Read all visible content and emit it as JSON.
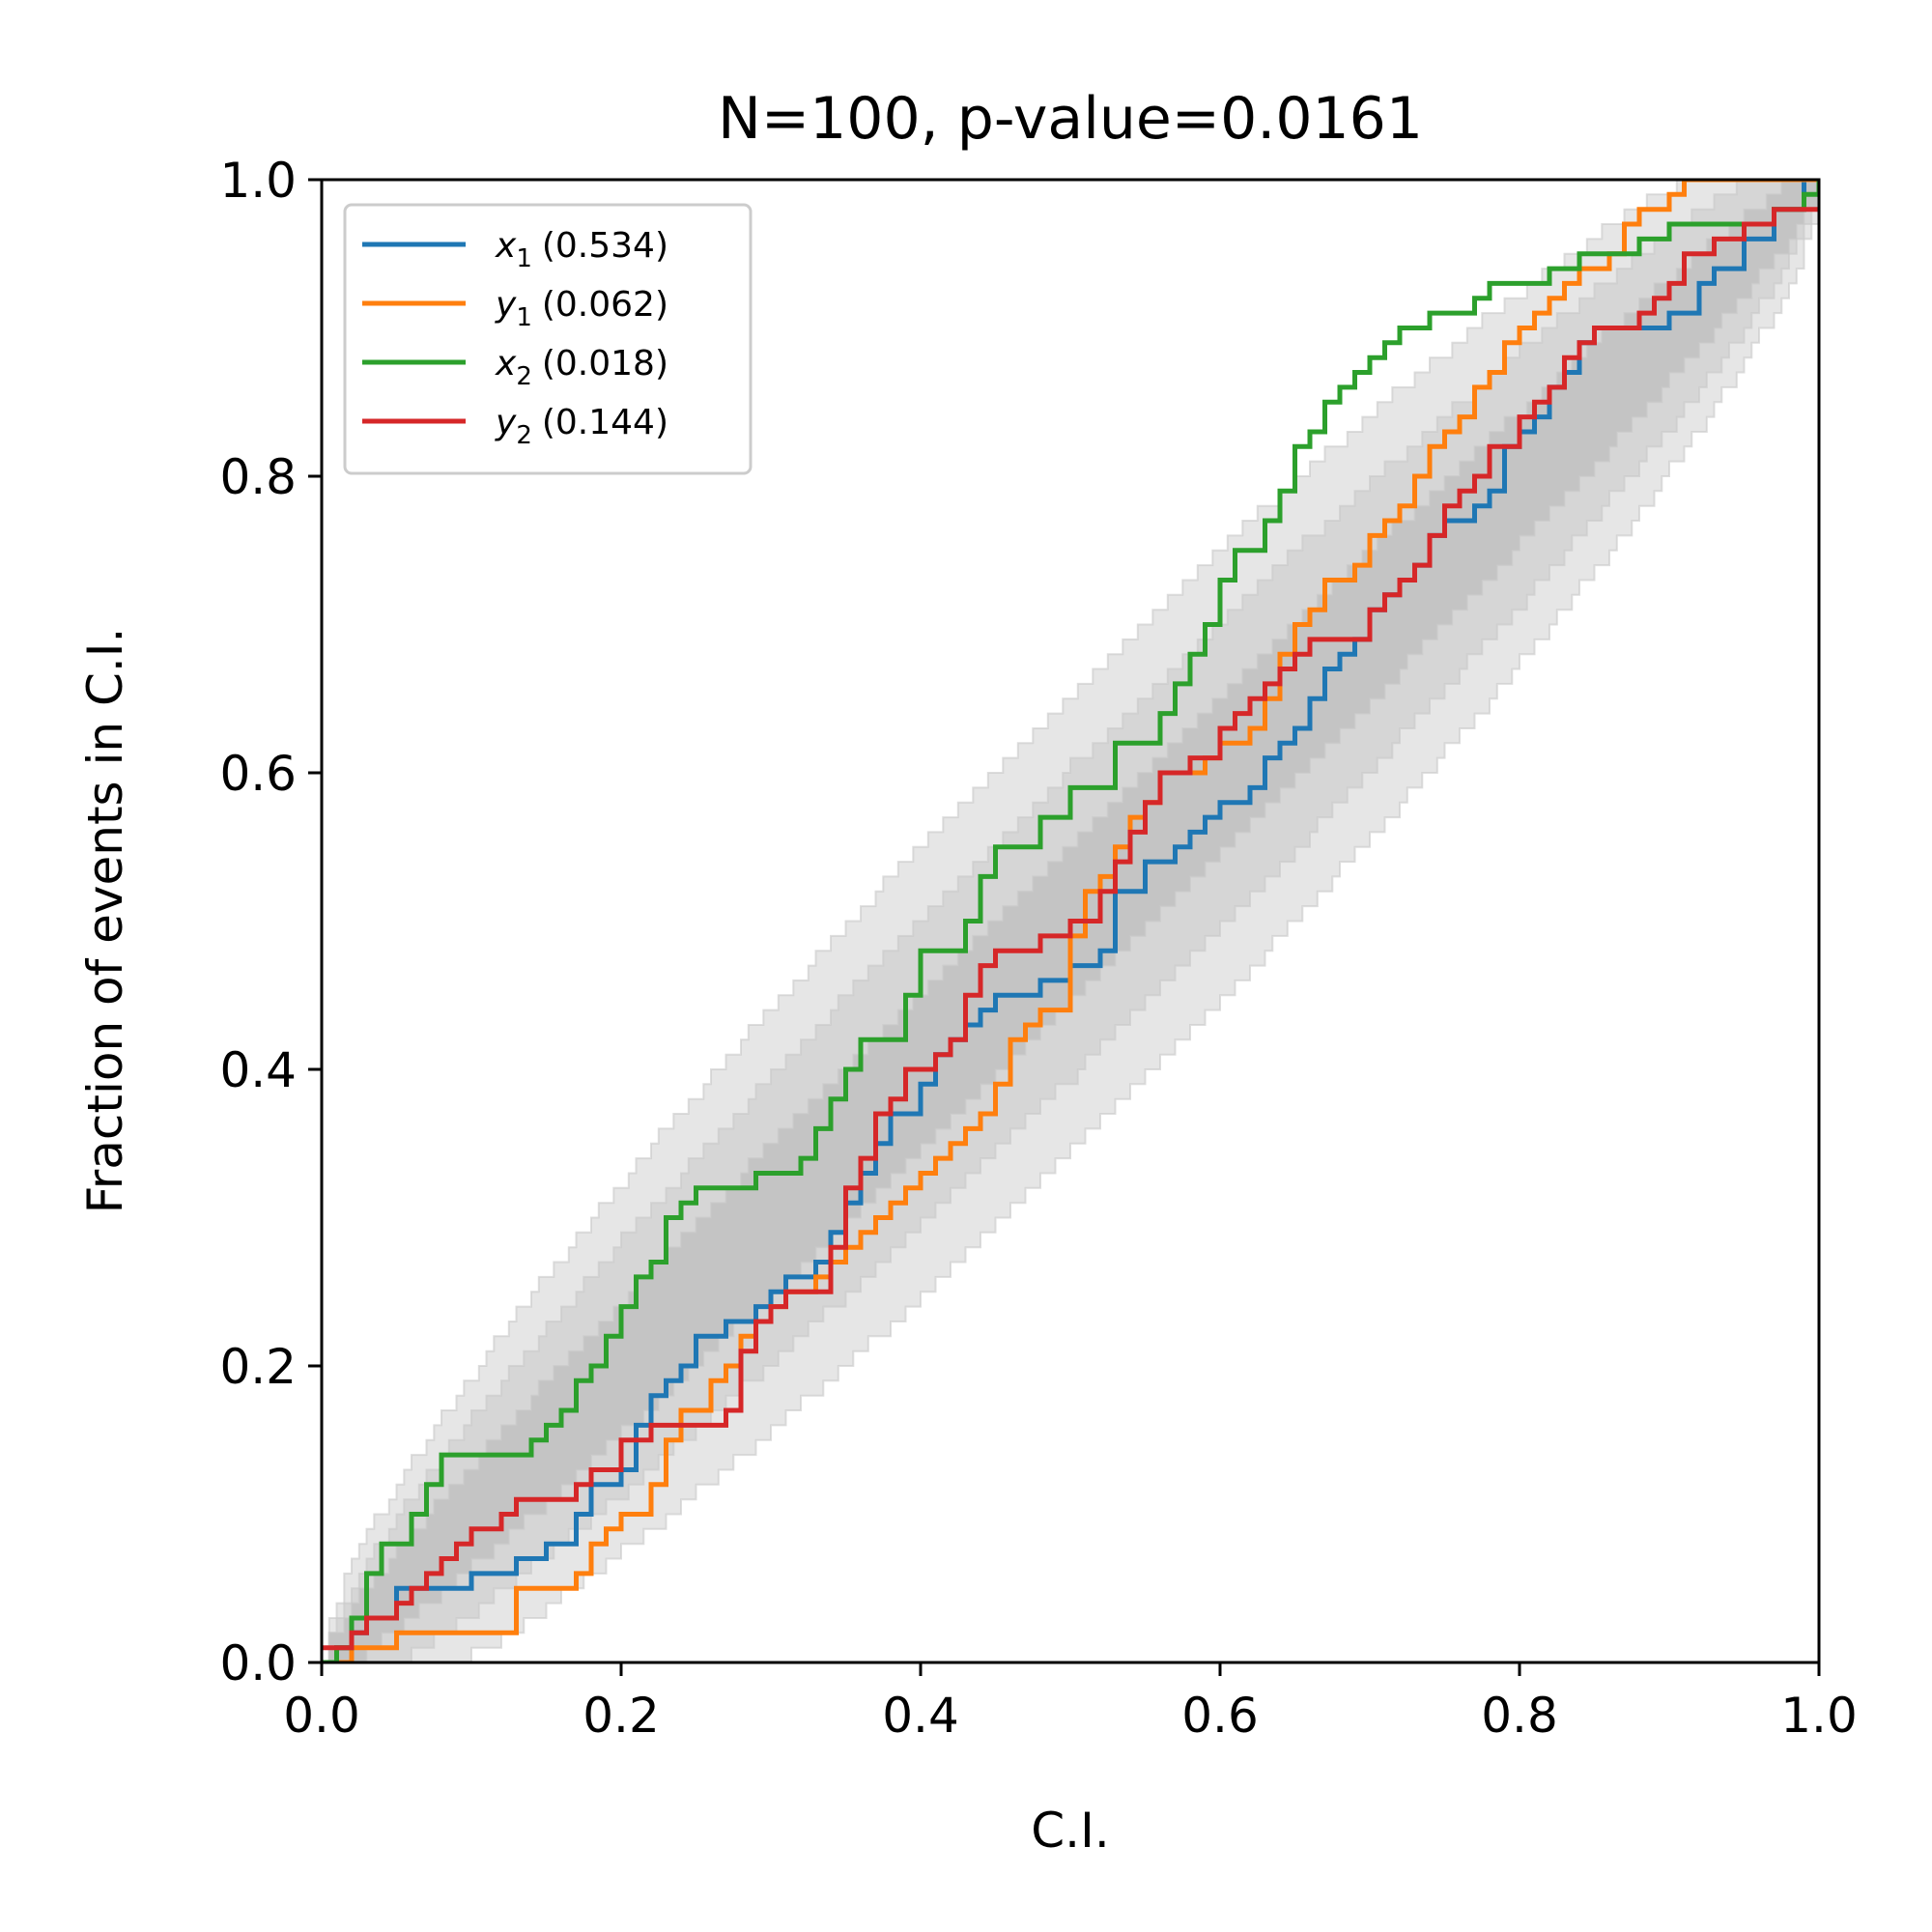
{
  "chart_data": {
    "type": "line",
    "title": "N=100, p-value=0.0161",
    "xlabel": "C.I.",
    "ylabel": "Fraction of events in C.I.",
    "xlim": [
      0,
      1
    ],
    "ylim": [
      0,
      1
    ],
    "xticks": [
      "0.0",
      "0.2",
      "0.4",
      "0.6",
      "0.8",
      "1.0"
    ],
    "yticks": [
      "0.0",
      "0.2",
      "0.4",
      "0.6",
      "0.8",
      "1.0"
    ],
    "grid": false,
    "legend_position": "top-left",
    "bands": {
      "description_levels": [
        "1σ",
        "2σ",
        "3σ"
      ],
      "n": 100,
      "colors": [
        "#c4c4c4",
        "#d6d6d6",
        "#e6e6e6"
      ]
    },
    "series": [
      {
        "var": "x",
        "sub": "1",
        "value_label": "(0.534)",
        "color": "#1f77b4",
        "x": [
          0,
          0.01,
          0.02,
          0.03,
          0.05,
          0.08,
          0.1,
          0.12,
          0.13,
          0.15,
          0.17,
          0.18,
          0.2,
          0.21,
          0.22,
          0.23,
          0.24,
          0.25,
          0.26,
          0.27,
          0.28,
          0.29,
          0.3,
          0.31,
          0.32,
          0.33,
          0.34,
          0.35,
          0.36,
          0.37,
          0.38,
          0.39,
          0.4,
          0.41,
          0.42,
          0.43,
          0.44,
          0.45,
          0.46,
          0.47,
          0.48,
          0.5,
          0.52,
          0.53,
          0.55,
          0.57,
          0.58,
          0.59,
          0.6,
          0.62,
          0.63,
          0.64,
          0.65,
          0.66,
          0.67,
          0.68,
          0.69,
          0.7,
          0.71,
          0.72,
          0.73,
          0.74,
          0.75,
          0.76,
          0.77,
          0.78,
          0.79,
          0.8,
          0.81,
          0.82,
          0.83,
          0.84,
          0.85,
          0.86,
          0.87,
          0.88,
          0.9,
          0.92,
          0.93,
          0.95,
          0.97,
          0.99,
          1.0
        ],
        "y": [
          0,
          0.01,
          0.02,
          0.03,
          0.05,
          0.05,
          0.06,
          0.06,
          0.07,
          0.08,
          0.1,
          0.12,
          0.13,
          0.16,
          0.18,
          0.19,
          0.2,
          0.22,
          0.22,
          0.23,
          0.23,
          0.24,
          0.25,
          0.26,
          0.26,
          0.27,
          0.29,
          0.31,
          0.33,
          0.35,
          0.37,
          0.37,
          0.39,
          0.41,
          0.42,
          0.43,
          0.44,
          0.45,
          0.45,
          0.45,
          0.46,
          0.47,
          0.48,
          0.52,
          0.54,
          0.55,
          0.56,
          0.57,
          0.58,
          0.59,
          0.61,
          0.62,
          0.63,
          0.65,
          0.67,
          0.68,
          0.69,
          0.71,
          0.72,
          0.73,
          0.74,
          0.76,
          0.77,
          0.77,
          0.78,
          0.79,
          0.82,
          0.83,
          0.84,
          0.86,
          0.87,
          0.89,
          0.9,
          0.9,
          0.9,
          0.9,
          0.91,
          0.93,
          0.94,
          0.96,
          0.98,
          1.0,
          1.0
        ]
      },
      {
        "var": "y",
        "sub": "1",
        "value_label": "(0.062)",
        "color": "#ff7f0e",
        "x": [
          0,
          0.02,
          0.03,
          0.05,
          0.06,
          0.08,
          0.12,
          0.13,
          0.17,
          0.18,
          0.19,
          0.2,
          0.22,
          0.23,
          0.24,
          0.25,
          0.26,
          0.27,
          0.28,
          0.29,
          0.3,
          0.31,
          0.33,
          0.34,
          0.35,
          0.36,
          0.37,
          0.38,
          0.39,
          0.4,
          0.41,
          0.42,
          0.43,
          0.44,
          0.45,
          0.46,
          0.47,
          0.48,
          0.49,
          0.5,
          0.51,
          0.52,
          0.53,
          0.54,
          0.55,
          0.56,
          0.58,
          0.59,
          0.6,
          0.62,
          0.63,
          0.64,
          0.65,
          0.66,
          0.67,
          0.68,
          0.69,
          0.7,
          0.71,
          0.72,
          0.73,
          0.74,
          0.75,
          0.76,
          0.77,
          0.78,
          0.79,
          0.8,
          0.81,
          0.82,
          0.83,
          0.84,
          0.85,
          0.86,
          0.87,
          0.88,
          0.9,
          0.91,
          0.92,
          0.94,
          0.96,
          0.98,
          1.0
        ],
        "y": [
          0,
          0.01,
          0.01,
          0.02,
          0.02,
          0.02,
          0.02,
          0.05,
          0.06,
          0.08,
          0.09,
          0.1,
          0.12,
          0.15,
          0.17,
          0.17,
          0.19,
          0.2,
          0.22,
          0.23,
          0.24,
          0.25,
          0.26,
          0.27,
          0.28,
          0.29,
          0.3,
          0.31,
          0.32,
          0.33,
          0.34,
          0.35,
          0.36,
          0.37,
          0.39,
          0.42,
          0.43,
          0.44,
          0.44,
          0.49,
          0.52,
          0.53,
          0.55,
          0.57,
          0.58,
          0.6,
          0.6,
          0.61,
          0.62,
          0.63,
          0.65,
          0.68,
          0.7,
          0.71,
          0.73,
          0.73,
          0.74,
          0.76,
          0.77,
          0.78,
          0.8,
          0.82,
          0.83,
          0.84,
          0.86,
          0.87,
          0.89,
          0.9,
          0.91,
          0.92,
          0.93,
          0.94,
          0.94,
          0.95,
          0.97,
          0.98,
          0.99,
          1.0,
          1.0,
          1.0,
          1.0,
          1.0,
          1.0
        ]
      },
      {
        "var": "x",
        "sub": "2",
        "value_label": "(0.018)",
        "color": "#2ca02c",
        "x": [
          0,
          0.01,
          0.02,
          0.03,
          0.04,
          0.05,
          0.06,
          0.07,
          0.08,
          0.14,
          0.15,
          0.16,
          0.17,
          0.18,
          0.19,
          0.2,
          0.21,
          0.22,
          0.23,
          0.24,
          0.25,
          0.26,
          0.27,
          0.29,
          0.32,
          0.33,
          0.34,
          0.35,
          0.36,
          0.37,
          0.39,
          0.4,
          0.42,
          0.43,
          0.44,
          0.45,
          0.46,
          0.48,
          0.5,
          0.52,
          0.53,
          0.54,
          0.55,
          0.56,
          0.57,
          0.58,
          0.59,
          0.6,
          0.61,
          0.62,
          0.63,
          0.64,
          0.65,
          0.66,
          0.67,
          0.68,
          0.69,
          0.7,
          0.71,
          0.72,
          0.73,
          0.74,
          0.75,
          0.76,
          0.77,
          0.78,
          0.8,
          0.82,
          0.84,
          0.86,
          0.88,
          0.9,
          0.93,
          0.95,
          0.97,
          0.99,
          1.0
        ],
        "y": [
          0,
          0.01,
          0.03,
          0.06,
          0.08,
          0.08,
          0.1,
          0.12,
          0.14,
          0.15,
          0.16,
          0.17,
          0.19,
          0.2,
          0.22,
          0.24,
          0.26,
          0.27,
          0.3,
          0.31,
          0.32,
          0.32,
          0.32,
          0.33,
          0.34,
          0.36,
          0.38,
          0.4,
          0.42,
          0.42,
          0.45,
          0.48,
          0.48,
          0.5,
          0.53,
          0.55,
          0.55,
          0.57,
          0.59,
          0.59,
          0.62,
          0.62,
          0.62,
          0.64,
          0.66,
          0.68,
          0.7,
          0.73,
          0.75,
          0.75,
          0.77,
          0.79,
          0.82,
          0.83,
          0.85,
          0.86,
          0.87,
          0.88,
          0.89,
          0.9,
          0.9,
          0.91,
          0.91,
          0.91,
          0.92,
          0.93,
          0.93,
          0.94,
          0.95,
          0.95,
          0.96,
          0.97,
          0.97,
          0.97,
          0.98,
          0.99,
          1.0
        ]
      },
      {
        "var": "y",
        "sub": "2",
        "value_label": "(0.144)",
        "color": "#d62728",
        "x": [
          0,
          0.02,
          0.03,
          0.05,
          0.06,
          0.07,
          0.08,
          0.09,
          0.1,
          0.11,
          0.12,
          0.13,
          0.15,
          0.17,
          0.18,
          0.2,
          0.22,
          0.23,
          0.24,
          0.26,
          0.27,
          0.28,
          0.29,
          0.3,
          0.31,
          0.32,
          0.33,
          0.34,
          0.35,
          0.36,
          0.37,
          0.38,
          0.39,
          0.4,
          0.41,
          0.42,
          0.43,
          0.44,
          0.45,
          0.46,
          0.48,
          0.5,
          0.52,
          0.53,
          0.54,
          0.55,
          0.56,
          0.58,
          0.6,
          0.61,
          0.62,
          0.63,
          0.64,
          0.65,
          0.66,
          0.67,
          0.69,
          0.7,
          0.71,
          0.72,
          0.73,
          0.74,
          0.75,
          0.76,
          0.77,
          0.78,
          0.8,
          0.81,
          0.82,
          0.83,
          0.84,
          0.85,
          0.86,
          0.88,
          0.89,
          0.9,
          0.91,
          0.93,
          0.95,
          0.97,
          0.99,
          1.0
        ],
        "y": [
          0.01,
          0.02,
          0.03,
          0.04,
          0.05,
          0.06,
          0.07,
          0.08,
          0.09,
          0.09,
          0.1,
          0.11,
          0.11,
          0.12,
          0.13,
          0.15,
          0.16,
          0.16,
          0.16,
          0.16,
          0.17,
          0.21,
          0.23,
          0.24,
          0.25,
          0.25,
          0.25,
          0.28,
          0.32,
          0.34,
          0.37,
          0.38,
          0.4,
          0.4,
          0.41,
          0.42,
          0.45,
          0.47,
          0.48,
          0.48,
          0.49,
          0.5,
          0.52,
          0.54,
          0.56,
          0.58,
          0.6,
          0.61,
          0.63,
          0.64,
          0.65,
          0.66,
          0.67,
          0.68,
          0.69,
          0.69,
          0.69,
          0.71,
          0.72,
          0.73,
          0.74,
          0.76,
          0.78,
          0.79,
          0.8,
          0.82,
          0.84,
          0.85,
          0.86,
          0.88,
          0.89,
          0.9,
          0.9,
          0.91,
          0.92,
          0.93,
          0.95,
          0.96,
          0.97,
          0.98,
          0.98,
          0.98
        ]
      }
    ]
  }
}
